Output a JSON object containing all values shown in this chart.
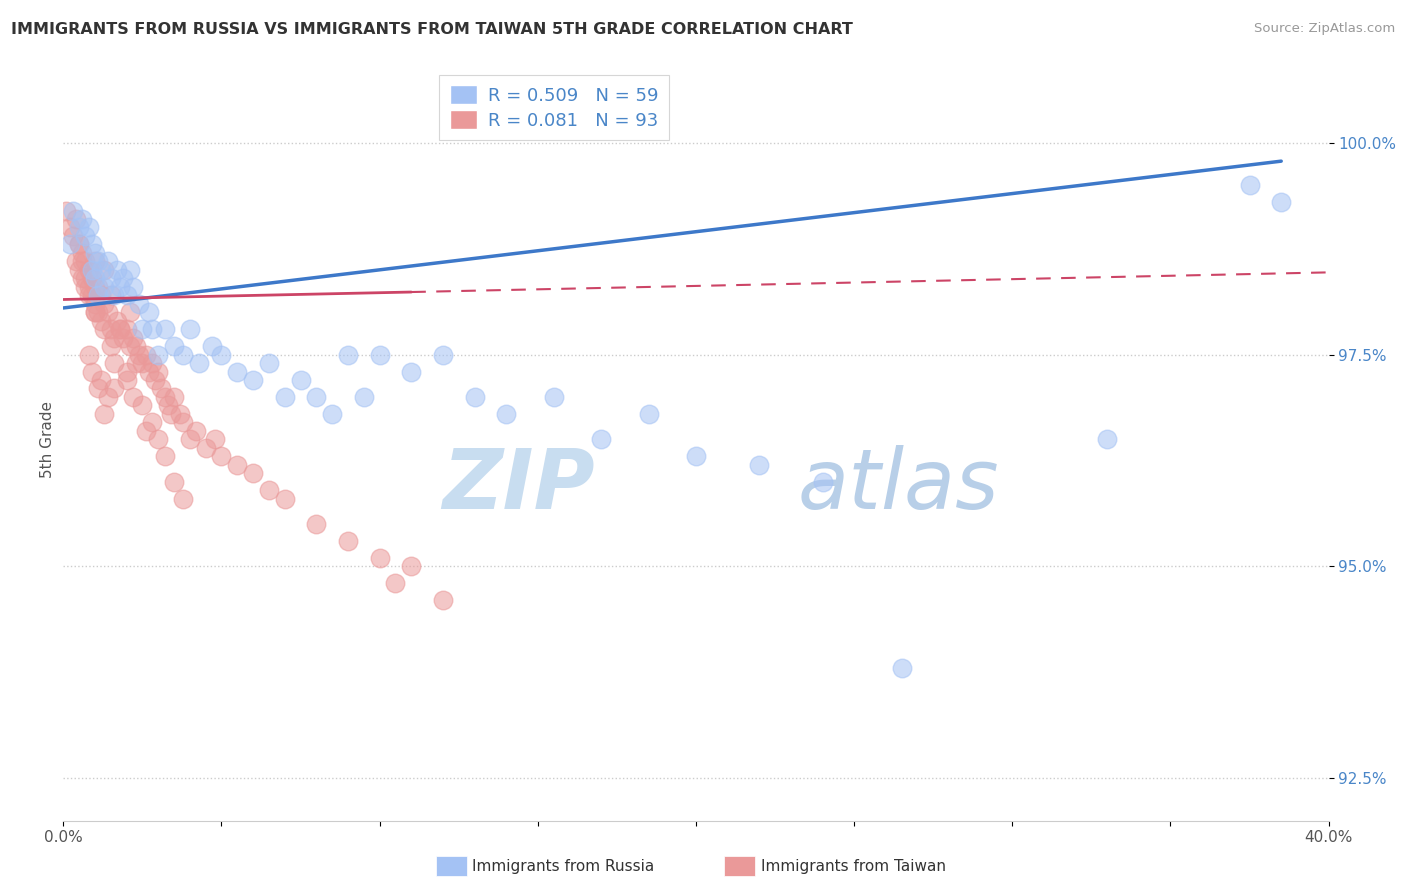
{
  "title": "IMMIGRANTS FROM RUSSIA VS IMMIGRANTS FROM TAIWAN 5TH GRADE CORRELATION CHART",
  "source_text": "Source: ZipAtlas.com",
  "ylabel": "5th Grade",
  "xlim": [
    0.0,
    40.0
  ],
  "ylim": [
    92.0,
    101.0
  ],
  "yticks": [
    92.5,
    95.0,
    97.5,
    100.0
  ],
  "ytick_labels": [
    "92.5%",
    "95.0%",
    "97.5%",
    "100.0%"
  ],
  "xtick_labels": [
    "0.0%",
    "",
    "",
    "",
    "",
    "",
    "",
    "40.0%"
  ],
  "legend_russia": "Immigrants from Russia",
  "legend_taiwan": "Immigrants from Taiwan",
  "R_russia": 0.509,
  "N_russia": 59,
  "R_taiwan": 0.081,
  "N_taiwan": 93,
  "russia_color": "#a4c2f4",
  "taiwan_color": "#ea9999",
  "russia_fill_color": "#6fa8dc",
  "taiwan_fill_color": "#e06677",
  "russia_line_color": "#3d78c9",
  "taiwan_line_color": "#cc4466",
  "background_color": "#ffffff",
  "watermark_color": "#d6e8f7",
  "russia_x": [
    0.2,
    0.3,
    0.5,
    0.6,
    0.7,
    0.8,
    0.9,
    0.9,
    1.0,
    1.0,
    1.1,
    1.1,
    1.2,
    1.3,
    1.4,
    1.5,
    1.6,
    1.7,
    1.8,
    1.9,
    2.0,
    2.1,
    2.2,
    2.4,
    2.5,
    2.7,
    2.8,
    3.0,
    3.2,
    3.5,
    3.8,
    4.0,
    4.3,
    4.7,
    5.0,
    5.5,
    6.0,
    6.5,
    7.0,
    7.5,
    8.0,
    8.5,
    9.0,
    9.5,
    10.0,
    11.0,
    12.0,
    13.0,
    14.0,
    15.5,
    17.0,
    18.5,
    20.0,
    22.0,
    24.0,
    26.5,
    33.0,
    37.5,
    38.5
  ],
  "russia_y": [
    98.8,
    99.2,
    99.0,
    99.1,
    98.9,
    99.0,
    98.8,
    98.5,
    98.7,
    98.4,
    98.6,
    98.2,
    98.5,
    98.3,
    98.6,
    98.4,
    98.2,
    98.5,
    98.3,
    98.4,
    98.2,
    98.5,
    98.3,
    98.1,
    97.8,
    98.0,
    97.8,
    97.5,
    97.8,
    97.6,
    97.5,
    97.8,
    97.4,
    97.6,
    97.5,
    97.3,
    97.2,
    97.4,
    97.0,
    97.2,
    97.0,
    96.8,
    97.5,
    97.0,
    97.5,
    97.3,
    97.5,
    97.0,
    96.8,
    97.0,
    96.5,
    96.8,
    96.3,
    96.2,
    96.0,
    93.8,
    96.5,
    99.5,
    99.3
  ],
  "taiwan_x": [
    0.1,
    0.2,
    0.3,
    0.4,
    0.5,
    0.5,
    0.6,
    0.7,
    0.7,
    0.8,
    0.8,
    0.9,
    0.9,
    1.0,
    1.0,
    1.0,
    1.1,
    1.1,
    1.2,
    1.2,
    1.3,
    1.3,
    1.3,
    1.4,
    1.5,
    1.5,
    1.6,
    1.7,
    1.8,
    1.9,
    2.0,
    2.1,
    2.1,
    2.2,
    2.3,
    2.4,
    2.5,
    2.6,
    2.7,
    2.8,
    2.9,
    3.0,
    3.1,
    3.2,
    3.3,
    3.4,
    3.5,
    3.7,
    3.8,
    4.0,
    4.2,
    4.5,
    4.8,
    5.0,
    5.5,
    6.0,
    6.5,
    7.0,
    8.0,
    9.0,
    10.0,
    10.5,
    11.0,
    12.0,
    0.8,
    1.0,
    1.2,
    1.4,
    0.5,
    0.6,
    0.7,
    1.5,
    1.6,
    2.0,
    2.2,
    2.5,
    2.8,
    3.0,
    3.2,
    3.5,
    1.8,
    2.3,
    0.9,
    1.1,
    1.3,
    1.6,
    0.4,
    0.6,
    0.8,
    1.0,
    2.0,
    2.6,
    3.8
  ],
  "taiwan_y": [
    99.2,
    99.0,
    98.9,
    99.1,
    98.8,
    98.5,
    98.7,
    98.6,
    98.4,
    98.5,
    98.3,
    98.4,
    98.2,
    98.6,
    98.3,
    98.1,
    98.3,
    98.0,
    98.2,
    97.9,
    98.1,
    97.8,
    98.5,
    98.0,
    97.8,
    98.2,
    97.7,
    97.9,
    97.8,
    97.7,
    97.8,
    97.6,
    98.0,
    97.7,
    97.6,
    97.5,
    97.4,
    97.5,
    97.3,
    97.4,
    97.2,
    97.3,
    97.1,
    97.0,
    96.9,
    96.8,
    97.0,
    96.8,
    96.7,
    96.5,
    96.6,
    96.4,
    96.5,
    96.3,
    96.2,
    96.1,
    95.9,
    95.8,
    95.5,
    95.3,
    95.1,
    94.8,
    95.0,
    94.6,
    97.5,
    98.0,
    97.2,
    97.0,
    98.8,
    98.6,
    98.3,
    97.6,
    97.4,
    97.2,
    97.0,
    96.9,
    96.7,
    96.5,
    96.3,
    96.0,
    97.8,
    97.4,
    97.3,
    97.1,
    96.8,
    97.1,
    98.6,
    98.4,
    98.2,
    98.0,
    97.3,
    96.6,
    95.8
  ]
}
